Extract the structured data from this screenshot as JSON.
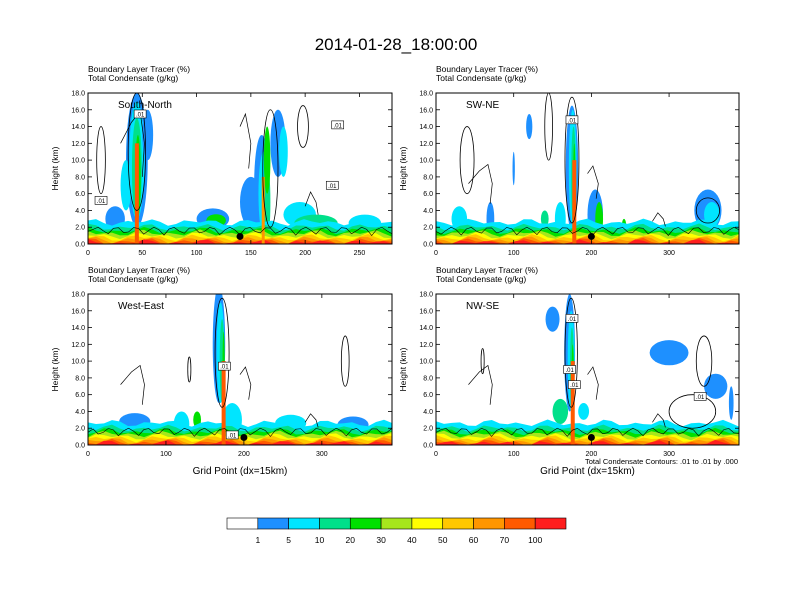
{
  "title": "2014-01-28_18:00:00",
  "footnote": "Total Condensate Contours: .01 to .01 by .000",
  "chart_data": [
    {
      "type": "heatmap",
      "panel": "South-North",
      "title_line1": "Boundary Layer Tracer   (%)",
      "title_line2": "Total Condensate   (g/kg)",
      "label": "South-North",
      "ylabel": "Height (km)",
      "xlabel": "",
      "xlim": [
        0,
        280
      ],
      "ylim": [
        0,
        18
      ],
      "xticks": [
        0,
        50,
        100,
        150,
        200,
        250
      ],
      "yticks": [
        "0.0",
        "2.0",
        "4.0",
        "6.0",
        "8.0",
        "10.0",
        "12.0",
        "14.0",
        "16.0",
        "18.0"
      ],
      "marker_x": 140,
      "contour_labels": [
        [
          48,
          15.5,
          ".01"
        ],
        [
          230,
          14.2,
          ".01"
        ],
        [
          12,
          5.2,
          ".01"
        ],
        [
          225,
          7.0,
          ".01"
        ]
      ]
    },
    {
      "type": "heatmap",
      "panel": "SW-NE",
      "title_line1": "Boundary Layer Tracer   (%)",
      "title_line2": "Total Condensate   (g/kg)",
      "label": "SW-NE",
      "ylabel": "Height (km)",
      "xlabel": "",
      "xlim": [
        0,
        390
      ],
      "ylim": [
        0,
        18
      ],
      "xticks": [
        0,
        100,
        200,
        300
      ],
      "yticks": [
        "0.0",
        "2.0",
        "4.0",
        "6.0",
        "8.0",
        "10.0",
        "12.0",
        "14.0",
        "16.0",
        "18.0"
      ],
      "marker_x": 200,
      "contour_labels": [
        [
          175,
          14.8,
          ".01"
        ]
      ]
    },
    {
      "type": "heatmap",
      "panel": "West-East",
      "title_line1": "Boundary Layer Tracer   (%)",
      "title_line2": "Total Condensate   (g/kg)",
      "label": "West-East",
      "ylabel": "Height (km)",
      "xlabel": "Grid Point (dx=15km)",
      "xlim": [
        0,
        390
      ],
      "ylim": [
        0,
        18
      ],
      "xticks": [
        0,
        100,
        200,
        300
      ],
      "yticks": [
        "0.0",
        "2.0",
        "4.0",
        "6.0",
        "8.0",
        "10.0",
        "12.0",
        "14.0",
        "16.0",
        "18.0"
      ],
      "marker_x": 200,
      "contour_labels": [
        [
          175,
          9.4,
          ".01"
        ],
        [
          185,
          1.2,
          ".01"
        ]
      ]
    },
    {
      "type": "heatmap",
      "panel": "NW-SE",
      "title_line1": "Boundary Layer Tracer   (%)",
      "title_line2": "Total Condensate   (g/kg)",
      "label": "NW-SE",
      "ylabel": "Height (km)",
      "xlabel": "Grid Point (dx=15km)",
      "xlim": [
        0,
        390
      ],
      "ylim": [
        0,
        18
      ],
      "xticks": [
        0,
        100,
        200,
        300
      ],
      "yticks": [
        "0.0",
        "2.0",
        "4.0",
        "6.0",
        "8.0",
        "10.0",
        "12.0",
        "14.0",
        "16.0",
        "18.0"
      ],
      "marker_x": 200,
      "contour_labels": [
        [
          175,
          15.1,
          ".01"
        ],
        [
          172,
          9.0,
          ".01"
        ],
        [
          178,
          7.2,
          ".01"
        ],
        [
          340,
          5.8,
          ".01"
        ]
      ]
    }
  ],
  "colorbar": {
    "levels": [
      1,
      5,
      10,
      20,
      30,
      40,
      50,
      60,
      70,
      100
    ],
    "colors": [
      "#ffffff",
      "#1e90ff",
      "#00e5ff",
      "#00e08a",
      "#00e000",
      "#a6e61c",
      "#ffff00",
      "#ffc800",
      "#ff9600",
      "#ff5a00",
      "#ff1e1e"
    ]
  }
}
